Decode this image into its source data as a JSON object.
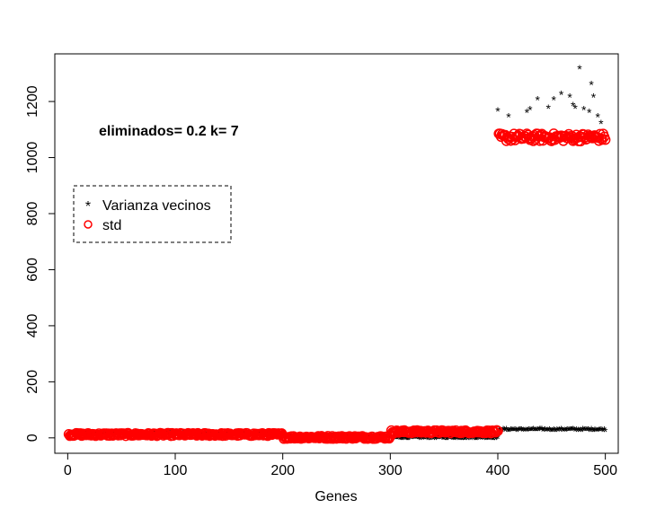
{
  "chart_data": {
    "type": "scatter",
    "title": "",
    "xlabel": "Genes",
    "ylabel": "",
    "xlim": [
      -12,
      512
    ],
    "ylim": [
      -55,
      1370
    ],
    "x_ticks": [
      0,
      100,
      200,
      300,
      400,
      500
    ],
    "x_tick_labels": [
      "0",
      "100",
      "200",
      "300",
      "400",
      "500"
    ],
    "y_ticks": [
      0,
      200,
      400,
      600,
      800,
      1000,
      1200
    ],
    "y_tick_labels": [
      "0",
      "200",
      "400",
      "600",
      "800",
      "1000",
      "1200"
    ],
    "grid": false,
    "legend_position": "left",
    "annotation": "eliminados= 0.2  k= 7",
    "colors": {
      "varianza": "#000000",
      "std": "#ff0000"
    },
    "series": [
      {
        "name": "Varianza vecinos",
        "marker": "*",
        "segments": [
          {
            "x_from": 1,
            "x_to": 200,
            "approx_y": 12
          },
          {
            "x_from": 201,
            "x_to": 300,
            "approx_y": 2
          },
          {
            "x_from": 301,
            "x_to": 400,
            "approx_y": -4
          },
          {
            "x_from": 401,
            "x_to": 500,
            "approx_y": 25
          }
        ],
        "outliers": [
          {
            "x": 400,
            "y": 1165
          },
          {
            "x": 410,
            "y": 1145
          },
          {
            "x": 427,
            "y": 1160
          },
          {
            "x": 430,
            "y": 1170
          },
          {
            "x": 437,
            "y": 1205
          },
          {
            "x": 447,
            "y": 1175
          },
          {
            "x": 452,
            "y": 1205
          },
          {
            "x": 459,
            "y": 1225
          },
          {
            "x": 467,
            "y": 1215
          },
          {
            "x": 470,
            "y": 1185
          },
          {
            "x": 472,
            "y": 1175
          },
          {
            "x": 476,
            "y": 1315
          },
          {
            "x": 480,
            "y": 1170
          },
          {
            "x": 485,
            "y": 1160
          },
          {
            "x": 487,
            "y": 1260
          },
          {
            "x": 489,
            "y": 1215
          },
          {
            "x": 493,
            "y": 1145
          },
          {
            "x": 496,
            "y": 1120
          }
        ]
      },
      {
        "name": "std",
        "marker": "o",
        "segments": [
          {
            "x_from": 1,
            "x_to": 200,
            "approx_y": 12
          },
          {
            "x_from": 201,
            "x_to": 300,
            "approx_y": 2
          },
          {
            "x_from": 301,
            "x_to": 400,
            "approx_y": 22
          },
          {
            "x_from": 401,
            "x_to": 500,
            "approx_y": 1072
          }
        ]
      }
    ]
  }
}
